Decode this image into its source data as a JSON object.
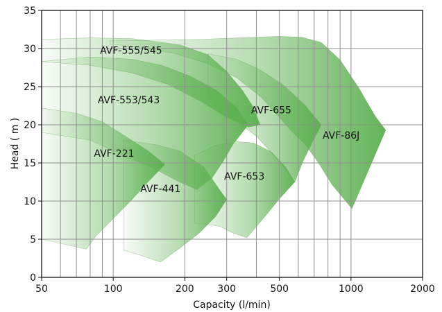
{
  "chart_data": {
    "type": "area",
    "xlabel": "Capacity (l/min)",
    "ylabel": "Head ( m )",
    "x_scale": "log",
    "xlim": [
      50,
      2000
    ],
    "ylim": [
      0,
      35
    ],
    "x_ticks": [
      50,
      100,
      200,
      300,
      500,
      1000,
      2000
    ],
    "x_tick_labels": [
      "50",
      "100",
      "200",
      "300",
      "500",
      "1000",
      "2000"
    ],
    "x_minor_grid": [
      60,
      70,
      80,
      90,
      400,
      600,
      700,
      800,
      900
    ],
    "y_ticks": [
      0,
      5,
      10,
      15,
      20,
      25,
      30,
      35
    ],
    "y_tick_labels": [
      "0",
      "5",
      "10",
      "15",
      "20",
      "25",
      "30",
      "35"
    ],
    "grid": true,
    "colors": {
      "fill": "#5bb04f",
      "line": "#8f8f8f"
    },
    "series": [
      {
        "name": "AVF-86J",
        "label_at": [
          760,
          18.2
        ],
        "outline": [
          [
            97,
            31.0
          ],
          [
            230,
            31.2
          ],
          [
            500,
            31.6
          ],
          [
            620,
            31.5
          ],
          [
            750,
            30.8
          ],
          [
            900,
            28.5
          ],
          [
            1080,
            24.8
          ],
          [
            1260,
            21.2
          ],
          [
            1400,
            19.3
          ],
          [
            1010,
            9.0
          ],
          [
            830,
            12.2
          ],
          [
            730,
            15.0
          ],
          [
            640,
            17.5
          ],
          [
            560,
            19.2
          ],
          [
            500,
            21.0
          ],
          [
            420,
            23.6
          ],
          [
            330,
            26.2
          ],
          [
            250,
            28.0
          ],
          [
            180,
            29.4
          ],
          [
            120,
            30.3
          ],
          [
            97,
            30.6
          ]
        ]
      },
      {
        "name": "AVF-655",
        "label_at": [
          380,
          21.5
        ],
        "outline": [
          [
            250,
            29.3
          ],
          [
            330,
            28.6
          ],
          [
            410,
            27.3
          ],
          [
            520,
            25.2
          ],
          [
            640,
            22.6
          ],
          [
            750,
            20.0
          ],
          [
            690,
            17.8
          ],
          [
            630,
            15.3
          ],
          [
            580,
            12.5
          ],
          [
            500,
            15.2
          ],
          [
            400,
            18.5
          ],
          [
            330,
            20.5
          ],
          [
            280,
            22.6
          ],
          [
            250,
            24.0
          ]
        ]
      },
      {
        "name": "AVF-555/545",
        "label_at": [
          88,
          29.3
        ],
        "outline": [
          [
            50,
            31.2
          ],
          [
            80,
            31.4
          ],
          [
            120,
            31.3
          ],
          [
            190,
            30.5
          ],
          [
            250,
            29.2
          ],
          [
            300,
            27.0
          ],
          [
            350,
            24.5
          ],
          [
            385,
            22.5
          ],
          [
            415,
            20.0
          ],
          [
            370,
            19.7
          ],
          [
            300,
            21.0
          ],
          [
            230,
            23.2
          ],
          [
            170,
            25.3
          ],
          [
            120,
            26.8
          ],
          [
            80,
            27.8
          ],
          [
            50,
            28.3
          ]
        ]
      },
      {
        "name": "AVF-553/543",
        "label_at": [
          86,
          22.8
        ],
        "outline": [
          [
            50,
            28.3
          ],
          [
            80,
            28.9
          ],
          [
            120,
            28.6
          ],
          [
            160,
            27.8
          ],
          [
            210,
            26.4
          ],
          [
            270,
            24.6
          ],
          [
            330,
            22.3
          ],
          [
            370,
            20.0
          ],
          [
            320,
            17.5
          ],
          [
            290,
            15.2
          ],
          [
            260,
            13.0
          ],
          [
            225,
            11.5
          ],
          [
            190,
            12.5
          ],
          [
            150,
            14.2
          ],
          [
            110,
            16.0
          ],
          [
            80,
            18.0
          ],
          [
            50,
            19.0
          ]
        ]
      },
      {
        "name": "AVF-653",
        "label_at": [
          293,
          12.8
        ],
        "outline": [
          [
            220,
            16.0
          ],
          [
            265,
            17.2
          ],
          [
            330,
            17.8
          ],
          [
            390,
            17.6
          ],
          [
            460,
            16.5
          ],
          [
            530,
            14.5
          ],
          [
            580,
            12.5
          ],
          [
            500,
            10.3
          ],
          [
            430,
            7.8
          ],
          [
            365,
            5.2
          ],
          [
            320,
            5.8
          ],
          [
            280,
            6.7
          ],
          [
            240,
            7.0
          ],
          [
            220,
            7.1
          ]
        ]
      },
      {
        "name": "AVF-221",
        "label_at": [
          83,
          15.8
        ],
        "outline": [
          [
            50,
            22.2
          ],
          [
            70,
            21.5
          ],
          [
            90,
            20.4
          ],
          [
            110,
            18.7
          ],
          [
            140,
            16.6
          ],
          [
            165,
            14.8
          ],
          [
            140,
            12.5
          ],
          [
            120,
            10.2
          ],
          [
            100,
            7.7
          ],
          [
            85,
            5.5
          ],
          [
            77,
            3.7
          ],
          [
            50,
            5.0
          ]
        ]
      },
      {
        "name": "AVF-441",
        "label_at": [
          130,
          11.2
        ],
        "outline": [
          [
            110,
            18.0
          ],
          [
            150,
            17.4
          ],
          [
            190,
            16.6
          ],
          [
            240,
            14.5
          ],
          [
            280,
            11.5
          ],
          [
            300,
            10.2
          ],
          [
            270,
            8.0
          ],
          [
            230,
            5.8
          ],
          [
            190,
            3.8
          ],
          [
            158,
            2.0
          ],
          [
            130,
            2.9
          ],
          [
            110,
            3.6
          ]
        ]
      }
    ]
  }
}
